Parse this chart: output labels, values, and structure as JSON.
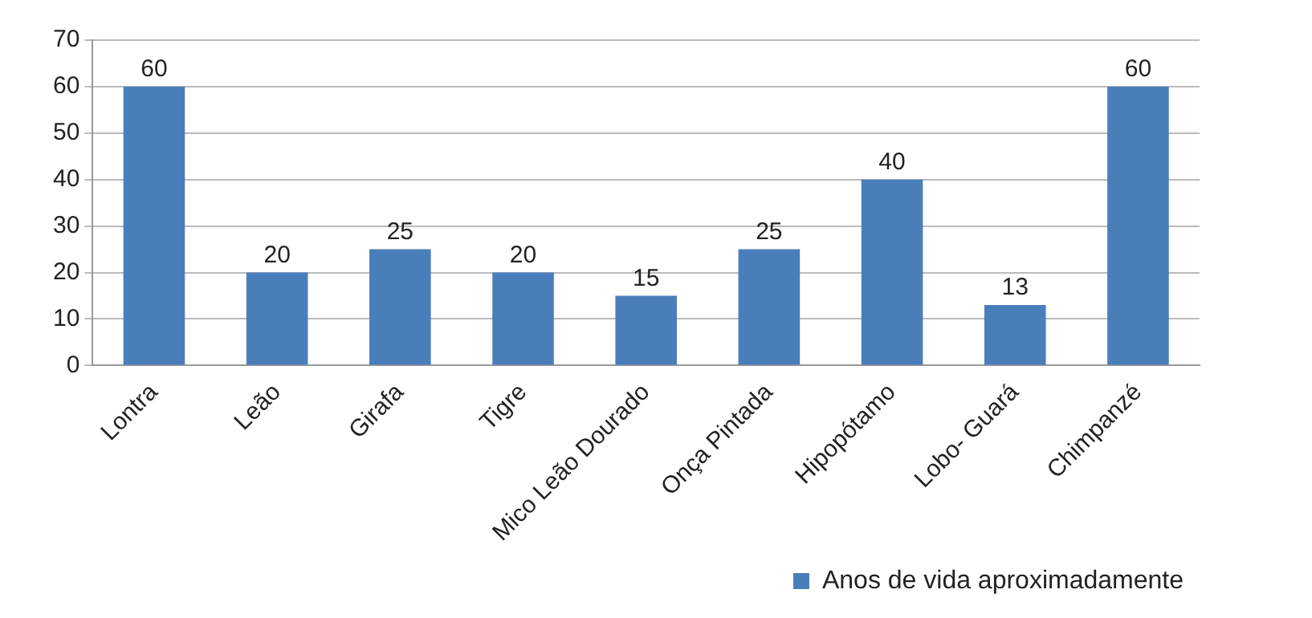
{
  "chart_data": {
    "type": "bar",
    "categories": [
      "Lontra",
      "Leão",
      "Girafa",
      "Tigre",
      "Mico Leão Dourado",
      "Onça Pintada",
      "Hipopótamo",
      "Lobo- Guará",
      "Chimpanzé"
    ],
    "series": [
      {
        "name": "Anos de vida aproximadamente",
        "color": "#4a7ebb",
        "values": [
          60,
          20,
          25,
          20,
          15,
          25,
          40,
          13,
          60
        ]
      }
    ],
    "ylim": [
      0,
      70
    ],
    "yticks": [
      0,
      10,
      20,
      30,
      40,
      50,
      60,
      70
    ],
    "grid": "y",
    "legend": "bottom right",
    "data_labels": true
  }
}
